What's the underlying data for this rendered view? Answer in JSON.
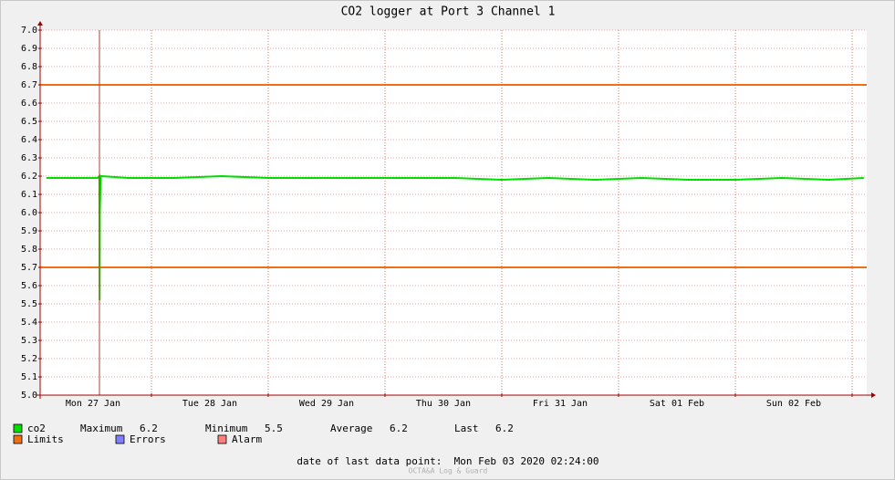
{
  "chart_data": {
    "type": "line",
    "title": "CO2 logger at Port 3 Channel 1",
    "ylim": [
      5,
      7
    ],
    "yticks": [
      {
        "value": 5,
        "label": "5.0"
      },
      5.1,
      5.2,
      5.3,
      5.4,
      5.5,
      5.6,
      5.7,
      5.8,
      5.9,
      {
        "value": 6,
        "label": "6.0"
      },
      6.1,
      6.2,
      6.3,
      6.4,
      6.5,
      6.6,
      6.7,
      6.8,
      6.9,
      {
        "value": 7,
        "label": "7.0"
      }
    ],
    "xlim": [
      0.047,
      7.125
    ],
    "xticks": [
      {
        "value": 0.5,
        "label": "Mon 27 Jan"
      },
      {
        "value": 1.5,
        "label": "Tue 28 Jan"
      },
      {
        "value": 2.5,
        "label": "Wed 29 Jan"
      },
      {
        "value": 3.5,
        "label": "Thu 30 Jan"
      },
      {
        "value": 4.5,
        "label": "Fri 31 Jan"
      },
      {
        "value": 5.5,
        "label": "Sat 01 Feb"
      },
      {
        "value": 6.5,
        "label": "Sun 02 Feb"
      }
    ],
    "xgrid": [
      1,
      2,
      3,
      4,
      5,
      6,
      7
    ],
    "grid": true,
    "series": [
      {
        "name": "co2",
        "color": "#00dd00",
        "x": [
          0.1,
          0.3,
          0.5,
          0.54,
          0.555,
          0.556,
          0.558,
          0.565,
          0.8,
          1.2,
          1.6,
          2.0,
          2.4,
          2.8,
          3.2,
          3.6,
          4.0,
          4.4,
          4.8,
          5.2,
          5.6,
          6.0,
          6.4,
          6.8,
          7.1
        ],
        "values": [
          6.19,
          6.19,
          6.19,
          6.19,
          6.2,
          5.52,
          6.0,
          6.2,
          6.19,
          6.19,
          6.2,
          6.19,
          6.19,
          6.19,
          6.19,
          6.19,
          6.18,
          6.19,
          6.18,
          6.19,
          6.18,
          6.18,
          6.19,
          6.18,
          6.19
        ]
      }
    ],
    "limits": {
      "name": "Limits",
      "color": "#f07010",
      "values": [
        6.7,
        5.7
      ]
    },
    "legend_extra": [
      {
        "name": "Errors",
        "color": "#7f7fff"
      },
      {
        "name": "Alarm",
        "color": "#ff7f7f"
      }
    ],
    "stats": [
      {
        "label": "Maximum",
        "value": 6.2
      },
      {
        "label": "Minimum",
        "value": 5.5
      },
      {
        "label": "Average",
        "value": 6.2
      },
      {
        "label": "Last",
        "value": 6.2
      }
    ],
    "footer": "date of last data point:  Mon Feb 03 2020 02:24:00",
    "watermark": "OCTA&A Log & Guard"
  }
}
